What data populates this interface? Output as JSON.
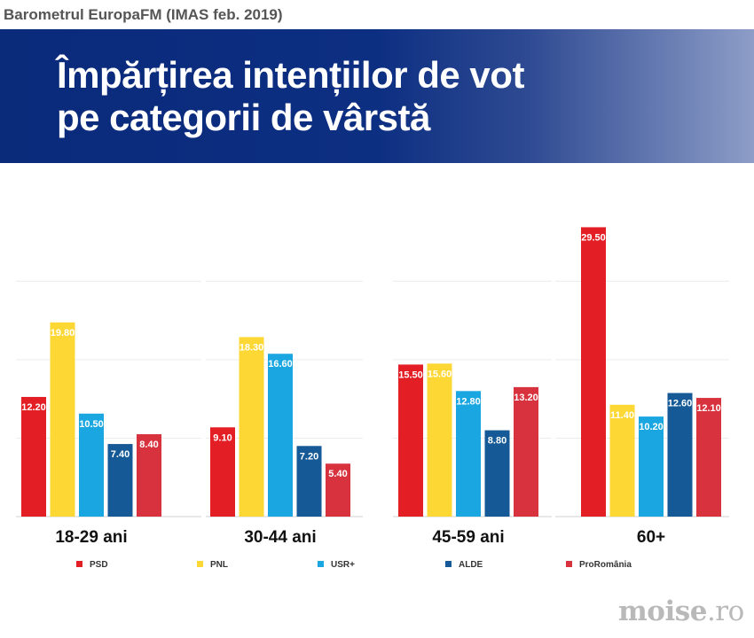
{
  "source": "Barometrul EuropaFM (IMAS feb. 2019)",
  "banner": {
    "title_line1": "Împărțirea intențiilor de vot",
    "title_line2": "pe categorii de vârstă"
  },
  "watermark": {
    "name": "moise",
    "suffix": ".ro"
  },
  "chart_data": {
    "type": "bar",
    "categories": [
      "18-29 ani",
      "30-44 ani",
      "45-59 ani",
      "60+"
    ],
    "series": [
      {
        "name": "PSD",
        "color": "#e31e24",
        "values": [
          12.2,
          9.1,
          15.5,
          29.5
        ]
      },
      {
        "name": "PNL",
        "color": "#fdd835",
        "values": [
          19.8,
          18.3,
          15.6,
          11.4
        ]
      },
      {
        "name": "USR+",
        "color": "#1aa7e1",
        "values": [
          10.5,
          16.6,
          12.8,
          10.2
        ]
      },
      {
        "name": "ALDE",
        "color": "#155a96",
        "values": [
          7.4,
          7.2,
          8.8,
          12.6
        ]
      },
      {
        "name": "ProRomânia",
        "color": "#d8323e",
        "values": [
          8.4,
          5.4,
          13.2,
          12.1
        ]
      }
    ],
    "ylim": [
      0,
      30
    ],
    "grid": true,
    "legend_position": "bottom"
  }
}
